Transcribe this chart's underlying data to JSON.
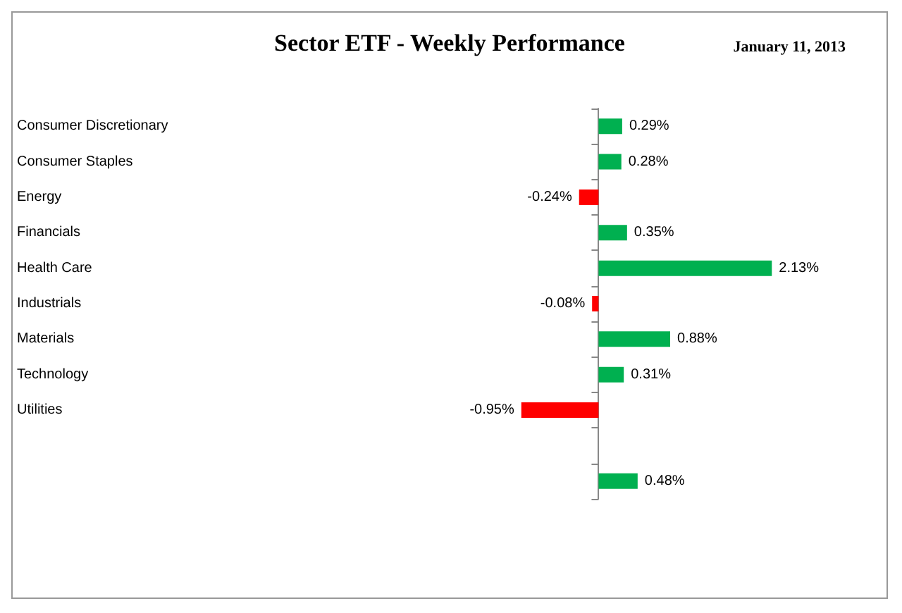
{
  "chart_data": {
    "type": "bar",
    "orientation": "horizontal",
    "title": "Sector ETF - Weekly Performance",
    "subtitle": "January 11, 2013",
    "categories": [
      "Consumer Discretionary",
      "Consumer Staples",
      "Energy",
      "Financials",
      "Health Care",
      "Industrials",
      "Materials",
      "Technology",
      "Utilities",
      null,
      null
    ],
    "values": [
      0.29,
      0.28,
      -0.24,
      0.35,
      2.13,
      -0.08,
      0.88,
      0.31,
      -0.95,
      null,
      0.48
    ],
    "value_labels": [
      "0.29%",
      "0.28%",
      "-0.24%",
      "0.35%",
      "2.13%",
      "-0.08%",
      "0.88%",
      "0.31%",
      "-0.95%",
      null,
      "0.48%"
    ],
    "colors": [
      "#00b050",
      "#00b050",
      "#ff0000",
      "#00b050",
      "#00b050",
      "#ff0000",
      "#00b050",
      "#00b050",
      "#ff0000",
      "#00b050",
      "#00b050"
    ],
    "tick_labels": "y"
  }
}
